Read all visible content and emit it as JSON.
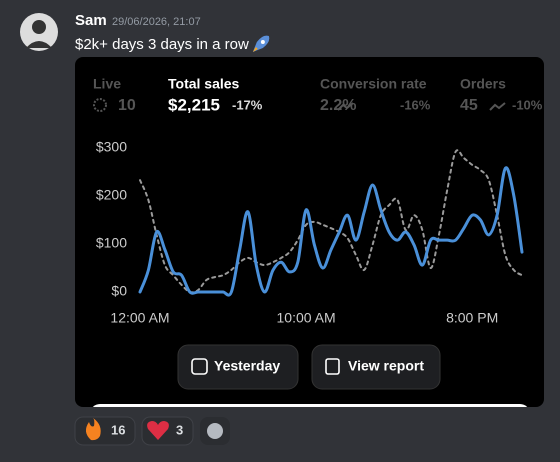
{
  "message": {
    "author": "Sam",
    "timestamp": "29/06/2026, 21:07",
    "text": "$2k+ days 3 days in a row"
  },
  "stats": [
    {
      "label": "Live",
      "value": "10"
    },
    {
      "label": "Total sales",
      "value": "$2,215",
      "change": "-17%"
    },
    {
      "label": "Conversion rate",
      "value": "2.2%",
      "change": "-16%"
    },
    {
      "label": "Orders",
      "value": "45",
      "change": "-10%"
    }
  ],
  "chart_data": {
    "type": "line",
    "x": [
      0,
      0.5,
      1,
      1.5,
      2,
      2.5,
      3,
      3.5,
      4,
      4.5,
      5,
      5.5,
      6,
      6.5,
      7,
      7.5,
      8,
      8.5,
      9,
      9.5,
      10,
      10.5,
      11,
      11.5,
      12,
      12.5,
      13,
      13.5,
      14,
      14.5,
      15,
      15.5,
      16,
      16.5,
      17,
      17.5,
      18,
      18.5,
      19,
      19.5,
      20,
      20.5,
      21,
      21.5,
      22,
      22.5,
      23
    ],
    "series": [
      {
        "color": "#4a90d9",
        "values": [
          0,
          45,
          125,
          88,
          42,
          35,
          0,
          0,
          0,
          0,
          0,
          0,
          88,
          167,
          56,
          0,
          45,
          62,
          42,
          62,
          171,
          98,
          50,
          88,
          125,
          160,
          108,
          167,
          223,
          171,
          125,
          108,
          125,
          98,
          56,
          108,
          108,
          108,
          108,
          133,
          160,
          150,
          119,
          160,
          258,
          202,
          83
        ]
      },
      {
        "color": "#9a9a9a",
        "dashed": true,
        "values": [
          233,
          192,
          119,
          56,
          35,
          15,
          0,
          4,
          25,
          31,
          35,
          46,
          62,
          71,
          62,
          56,
          62,
          71,
          83,
          108,
          140,
          146,
          140,
          133,
          125,
          112,
          77,
          46,
          98,
          160,
          181,
          192,
          129,
          160,
          129,
          50,
          119,
          213,
          292,
          279,
          265,
          254,
          233,
          160,
          77,
          46,
          35
        ]
      }
    ],
    "xlim": [
      0,
      23
    ],
    "xticks": [
      {
        "value": 0,
        "label": "12:00 AM"
      },
      {
        "value": 10,
        "label": "10:00 AM"
      },
      {
        "value": 20,
        "label": "8:00 PM"
      }
    ],
    "ylim": [
      0,
      300
    ],
    "yticks": [
      {
        "value": 0,
        "label": "$0"
      },
      {
        "value": 100,
        "label": "$100"
      },
      {
        "value": 200,
        "label": "$200"
      },
      {
        "value": 300,
        "label": "$300"
      }
    ]
  },
  "buttons": [
    "Yesterday",
    "View report"
  ],
  "reactions": [
    {
      "count": 16
    },
    {
      "count": 3
    }
  ]
}
